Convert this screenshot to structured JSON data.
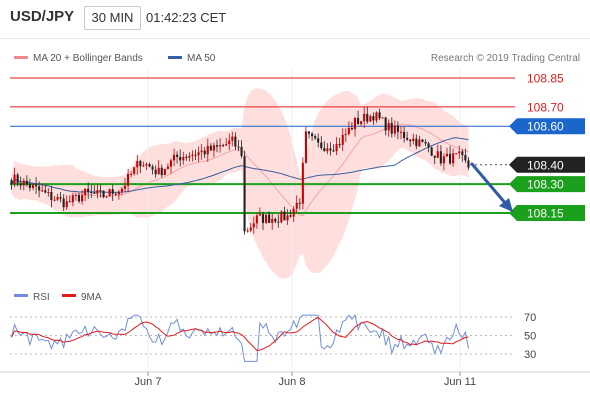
{
  "header": {
    "symbol": "USD/JPY",
    "timeframe": "30 MIN",
    "clock": "01:42:23 CET"
  },
  "legend": {
    "bb_label": "MA 20 + Bollinger Bands",
    "ma50_label": "MA 50",
    "credit": "Research © 2019 Trading Central"
  },
  "rsi_legend": {
    "rsi_label": "RSI",
    "ma_label": "9MA"
  },
  "colors": {
    "up": "#cc0000",
    "down": "#222222",
    "bb_fill": "#ffdede",
    "bb_line": "#f4a6a6",
    "ma50": "#3a5fa0",
    "resistance": "#e31a1c",
    "pivot": "#1a66cc",
    "support": "#1aa01a",
    "rsi": "#6f8fdc",
    "rsi_ma": "#e31a1c",
    "arrow": "#2f5aa8"
  },
  "chart_data": [
    {
      "type": "candlestick",
      "title": "USD/JPY",
      "x_ticks": [
        "Jun 7",
        "Jun 8",
        "Jun 11"
      ],
      "y_range": [
        107.9,
        109.0
      ],
      "levels": [
        {
          "value": 108.85,
          "label": "108.85",
          "kind": "resistance"
        },
        {
          "value": 108.7,
          "label": "108.70",
          "kind": "resistance"
        },
        {
          "value": 108.6,
          "label": "108.60",
          "kind": "pivot"
        },
        {
          "value": 108.4,
          "label": "108.40",
          "kind": "last"
        },
        {
          "value": 108.3,
          "label": "108.30",
          "kind": "support"
        },
        {
          "value": 108.15,
          "label": "108.15",
          "kind": "support"
        }
      ],
      "series": [
        {
          "name": "MA 20 + Bollinger Bands"
        },
        {
          "name": "MA 50"
        }
      ]
    },
    {
      "type": "line",
      "title": "RSI",
      "y_ticks": [
        70,
        50,
        30
      ],
      "ylim": [
        20,
        80
      ],
      "series": [
        {
          "name": "RSI"
        },
        {
          "name": "9MA"
        }
      ]
    }
  ]
}
